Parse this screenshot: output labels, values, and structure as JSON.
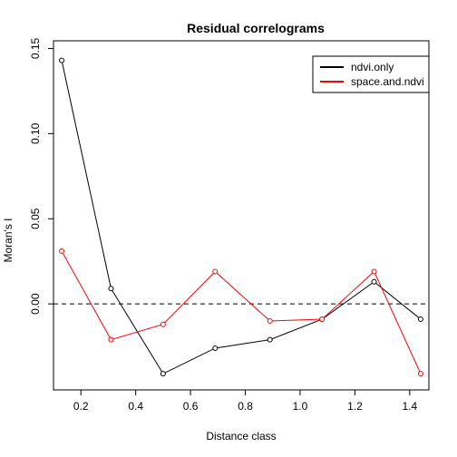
{
  "chart_data": {
    "type": "line",
    "title": "Residual correlograms",
    "xlabel": "Distance class",
    "ylabel": "Moran's I",
    "xlim": [
      0.1,
      1.47
    ],
    "ylim": [
      -0.0505,
      0.1545
    ],
    "x_ticks": [
      0.2,
      0.4,
      0.6,
      0.8,
      1.0,
      1.2,
      1.4
    ],
    "x_tick_labels": [
      "0.2",
      "0.4",
      "0.6",
      "0.8",
      "1.0",
      "1.2",
      "1.4"
    ],
    "y_ticks": [
      0.0,
      0.05,
      0.1,
      0.15
    ],
    "y_tick_labels": [
      "0.00",
      "0.05",
      "0.10",
      "0.15"
    ],
    "reference_line": {
      "y": 0.0,
      "style": "dashed"
    },
    "legend_position": "top-right",
    "series": [
      {
        "name": "ndvi.only",
        "color": "#000000",
        "x": [
          0.13,
          0.31,
          0.5,
          0.69,
          0.89,
          1.08,
          1.27,
          1.44
        ],
        "y": [
          0.143,
          0.009,
          -0.041,
          -0.026,
          -0.021,
          -0.009,
          0.013,
          -0.009
        ]
      },
      {
        "name": "space.and.ndvi",
        "color": "#ff0000",
        "x": [
          0.13,
          0.31,
          0.5,
          0.69,
          0.89,
          1.08,
          1.27,
          1.44
        ],
        "y": [
          0.031,
          -0.021,
          -0.012,
          0.019,
          -0.01,
          -0.009,
          0.019,
          -0.041
        ]
      }
    ]
  }
}
